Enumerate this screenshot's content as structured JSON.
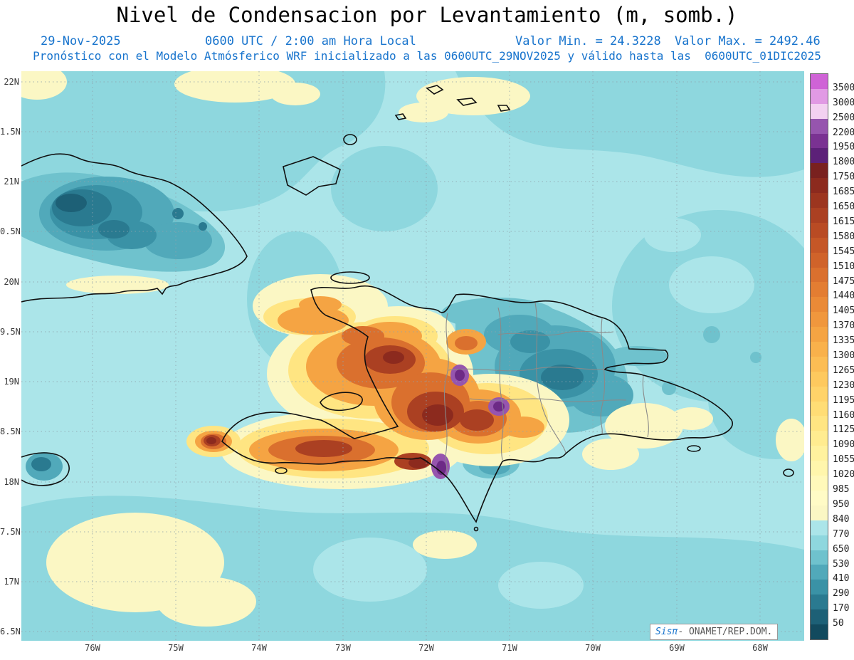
{
  "title": "Nivel de Condensacion por Levantamiento (m, somb.)",
  "header": {
    "date": "29-Nov-2025",
    "time": "0600 UTC / 2:00 am Hora Local",
    "valor_min": "Valor Min. = 24.3228",
    "valor_max": "Valor Max. = 2492.46",
    "forecast_line": "Pronóstico con el Modelo Atmósferico WRF inicializado a las 0600UTC_29NOV2025 y válido hasta las  0600UTC_01DIC2025",
    "accent_color": "#1874cd"
  },
  "axes": {
    "lat_labels": [
      "22N",
      "1.5N",
      "21N",
      "0.5N",
      "20N",
      "9.5N",
      "19N",
      "8.5N",
      "18N",
      "7.5N",
      "17N",
      "6.5N"
    ],
    "lon_labels": [
      "76W",
      "75W",
      "74W",
      "73W",
      "72W",
      "71W",
      "70W",
      "69W",
      "68W"
    ]
  },
  "colorbar": {
    "tick_labels": [
      "3500",
      "3000",
      "2500",
      "2200",
      "1950",
      "1800",
      "1750",
      "1685",
      "1650",
      "1615",
      "1580",
      "1545",
      "1510",
      "1475",
      "1440",
      "1405",
      "1370",
      "1335",
      "1300",
      "1265",
      "1230",
      "1195",
      "1160",
      "1125",
      "1090",
      "1055",
      "1020",
      "985",
      "950",
      "840",
      "770",
      "650",
      "530",
      "410",
      "290",
      "170",
      "50"
    ],
    "colors": [
      "#cf63d6",
      "#e19ae4",
      "#f3d1f1",
      "#9655ae",
      "#7a3292",
      "#5c2178",
      "#79211f",
      "#8c2a1e",
      "#9c351f",
      "#ab4022",
      "#b94b24",
      "#c55727",
      "#d0632a",
      "#da702e",
      "#e37d32",
      "#ea8a37",
      "#f0973d",
      "#f5a443",
      "#f9b14b",
      "#fcbd54",
      "#fec95e",
      "#ffd369",
      "#ffdd75",
      "#ffe582",
      "#ffec90",
      "#fff29e",
      "#fff6ac",
      "#fff9ba",
      "#fffbc6",
      "#fbf7c4",
      "#abe5e9",
      "#8ed7de",
      "#6fc2cd",
      "#51a9ba",
      "#3a92a6",
      "#2a7a90",
      "#1d6076",
      "#124a5e"
    ]
  },
  "watermark": {
    "brand": "Sisπ",
    "org": "- ONAMET/REP.DOM."
  }
}
